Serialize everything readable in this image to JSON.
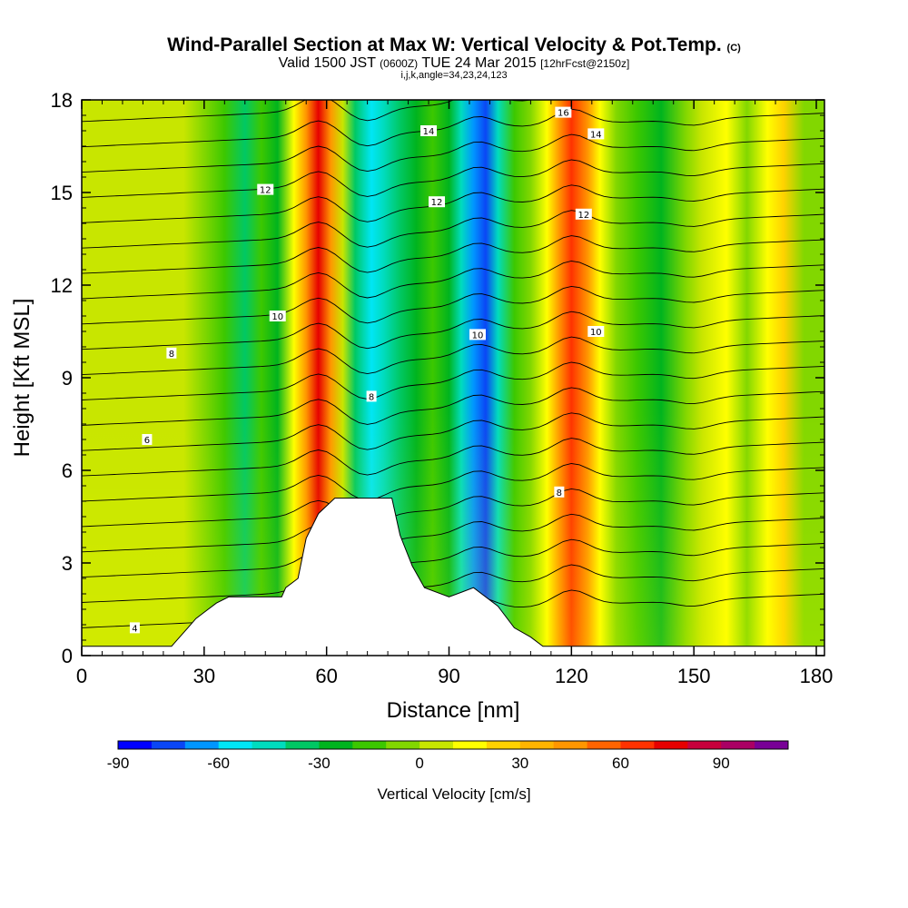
{
  "title": {
    "main": "Wind-Parallel Section at Max W: Vertical Velocity & Pot.Temp.",
    "copyright": "(C)",
    "valid_prefix": "Valid 1500 JST",
    "valid_utc": "(0600Z)",
    "valid_suffix": "TUE 24 Mar 2015",
    "forecast": "[12hrFcst@2150z]",
    "indices": "i,j,k,angle=34,23,24,123"
  },
  "chart_data": {
    "type": "heatmap",
    "xlabel": "Distance [nm]",
    "ylabel": "Height [Kft MSL]",
    "xlim": [
      0,
      182
    ],
    "ylim": [
      0,
      18
    ],
    "x_ticks": [
      "0",
      "30",
      "60",
      "90",
      "120",
      "150",
      "180"
    ],
    "y_ticks": [
      "0",
      "3",
      "6",
      "9",
      "12",
      "15",
      "18"
    ],
    "grid": false,
    "colorbar": {
      "label": "Vertical Velocity [cm/s]",
      "min": -90,
      "step": 10,
      "ticks": [
        "-90",
        "-60",
        "-30",
        "0",
        "30",
        "60",
        "90"
      ],
      "colors": [
        "#0000ff",
        "#0a46f5",
        "#0096ff",
        "#00e6f5",
        "#00dcbe",
        "#00c864",
        "#00b41e",
        "#3cc800",
        "#82d700",
        "#c8e600",
        "#ffff00",
        "#ffd200",
        "#ffb400",
        "#ff9600",
        "#ff6400",
        "#ff3200",
        "#e60000",
        "#c8003c",
        "#aa0064",
        "#780096"
      ]
    },
    "vertical_velocity_profile_cm_s": [
      {
        "x": 0,
        "w": 2
      },
      {
        "x": 10,
        "w": 4
      },
      {
        "x": 20,
        "w": 6
      },
      {
        "x": 25,
        "w": 3
      },
      {
        "x": 30,
        "w": -5
      },
      {
        "x": 35,
        "w": -20
      },
      {
        "x": 40,
        "w": -35
      },
      {
        "x": 44,
        "w": -15
      },
      {
        "x": 48,
        "w": -25
      },
      {
        "x": 52,
        "w": 10
      },
      {
        "x": 55,
        "w": 40
      },
      {
        "x": 58,
        "w": 70
      },
      {
        "x": 61,
        "w": 40
      },
      {
        "x": 64,
        "w": 5
      },
      {
        "x": 67,
        "w": -40
      },
      {
        "x": 71,
        "w": -60
      },
      {
        "x": 74,
        "w": -50
      },
      {
        "x": 78,
        "w": -40
      },
      {
        "x": 82,
        "w": -30
      },
      {
        "x": 86,
        "w": -20
      },
      {
        "x": 90,
        "w": -25
      },
      {
        "x": 93,
        "w": -45
      },
      {
        "x": 96,
        "w": -65
      },
      {
        "x": 99,
        "w": -80
      },
      {
        "x": 102,
        "w": -50
      },
      {
        "x": 106,
        "w": -20
      },
      {
        "x": 110,
        "w": -5
      },
      {
        "x": 114,
        "w": 15
      },
      {
        "x": 117,
        "w": 40
      },
      {
        "x": 120,
        "w": 65
      },
      {
        "x": 124,
        "w": 45
      },
      {
        "x": 127,
        "w": 10
      },
      {
        "x": 131,
        "w": -10
      },
      {
        "x": 136,
        "w": -20
      },
      {
        "x": 142,
        "w": -30
      },
      {
        "x": 148,
        "w": -10
      },
      {
        "x": 152,
        "w": 5
      },
      {
        "x": 158,
        "w": 15
      },
      {
        "x": 163,
        "w": -5
      },
      {
        "x": 168,
        "w": 10
      },
      {
        "x": 172,
        "w": 20
      },
      {
        "x": 177,
        "w": -5
      },
      {
        "x": 182,
        "w": -10
      }
    ],
    "terrain_kft": [
      {
        "x": 0,
        "h": 0.3
      },
      {
        "x": 22,
        "h": 0.3
      },
      {
        "x": 24,
        "h": 0.6
      },
      {
        "x": 26,
        "h": 0.9
      },
      {
        "x": 28,
        "h": 1.2
      },
      {
        "x": 30,
        "h": 1.4
      },
      {
        "x": 33,
        "h": 1.7
      },
      {
        "x": 36,
        "h": 1.9
      },
      {
        "x": 49,
        "h": 1.9
      },
      {
        "x": 50,
        "h": 2.2
      },
      {
        "x": 53,
        "h": 2.5
      },
      {
        "x": 55,
        "h": 3.8
      },
      {
        "x": 58,
        "h": 4.6
      },
      {
        "x": 62,
        "h": 5.1
      },
      {
        "x": 76,
        "h": 5.1
      },
      {
        "x": 78,
        "h": 3.9
      },
      {
        "x": 81,
        "h": 2.9
      },
      {
        "x": 84,
        "h": 2.2
      },
      {
        "x": 90,
        "h": 1.9
      },
      {
        "x": 96,
        "h": 2.2
      },
      {
        "x": 102,
        "h": 1.6
      },
      {
        "x": 106,
        "h": 0.9
      },
      {
        "x": 110,
        "h": 0.6
      },
      {
        "x": 113,
        "h": 0.3
      },
      {
        "x": 182,
        "h": 0.3
      }
    ],
    "potential_temperature_contours": [
      {
        "label": "4",
        "label_x": 13,
        "label_y_kft": 0.9
      },
      {
        "label": "6",
        "label_x": 16,
        "label_y_kft": 7.0
      },
      {
        "label": "8",
        "label_x": 22,
        "label_y_kft": 9.8
      },
      {
        "label": "8",
        "label_x": 71,
        "label_y_kft": 8.4
      },
      {
        "label": "8",
        "label_x": 117,
        "label_y_kft": 5.3
      },
      {
        "label": "10",
        "label_x": 48,
        "label_y_kft": 11.0
      },
      {
        "label": "10",
        "label_x": 97,
        "label_y_kft": 10.4
      },
      {
        "label": "10",
        "label_x": 126,
        "label_y_kft": 10.5
      },
      {
        "label": "12",
        "label_x": 45,
        "label_y_kft": 15.1
      },
      {
        "label": "12",
        "label_x": 87,
        "label_y_kft": 14.7
      },
      {
        "label": "12",
        "label_x": 123,
        "label_y_kft": 14.3
      },
      {
        "label": "14",
        "label_x": 85,
        "label_y_kft": 17.0
      },
      {
        "label": "14",
        "label_x": 126,
        "label_y_kft": 16.9
      },
      {
        "label": "16",
        "label_x": 118,
        "label_y_kft": 17.6
      }
    ]
  }
}
